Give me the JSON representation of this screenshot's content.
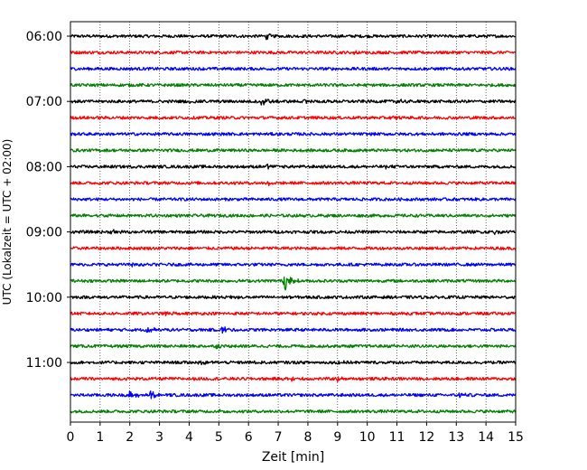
{
  "chart_data": {
    "type": "line",
    "title": "",
    "xlabel": "Zeit  [min]",
    "ylabel": "UTC (Lokalzeit = UTC + 02:00)",
    "xlim": [
      0,
      15
    ],
    "x_ticks": [
      0,
      1,
      2,
      3,
      4,
      5,
      6,
      7,
      8,
      9,
      10,
      11,
      12,
      13,
      14,
      15
    ],
    "x_tick_labels": [
      "0",
      "1",
      "2",
      "3",
      "4",
      "5",
      "6",
      "7",
      "8",
      "9",
      "10",
      "11",
      "12",
      "13",
      "14",
      "15"
    ],
    "y_tick_labels": [
      "06:00",
      "07:00",
      "08:00",
      "09:00",
      "10:00",
      "11:00"
    ],
    "grid": "vertical dotted lines at each minute",
    "color_cycle": [
      "#000000",
      "#ff0000",
      "#0000ff",
      "#008000"
    ],
    "series": [
      {
        "start": "06:00",
        "color": "#000000",
        "events": [
          {
            "t": 6.6,
            "amp": 0.35
          }
        ]
      },
      {
        "start": "06:15",
        "color": "#ff0000",
        "events": [
          {
            "t": 9.5,
            "amp": 0.2
          }
        ]
      },
      {
        "start": "06:30",
        "color": "#0000ff",
        "events": []
      },
      {
        "start": "06:45",
        "color": "#008000",
        "events": []
      },
      {
        "start": "07:00",
        "color": "#000000",
        "events": [
          {
            "t": 6.4,
            "amp": 0.9
          },
          {
            "t": 4.0,
            "amp": 0.25
          },
          {
            "t": 11.0,
            "amp": 0.3
          },
          {
            "t": 7.9,
            "amp": 0.2
          }
        ]
      },
      {
        "start": "07:15",
        "color": "#ff0000",
        "events": [
          {
            "t": 10.9,
            "amp": 0.2
          }
        ]
      },
      {
        "start": "07:30",
        "color": "#0000ff",
        "events": []
      },
      {
        "start": "07:45",
        "color": "#008000",
        "events": []
      },
      {
        "start": "08:00",
        "color": "#000000",
        "events": [
          {
            "t": 6.6,
            "amp": 0.25
          },
          {
            "t": 10.6,
            "amp": 0.2
          }
        ]
      },
      {
        "start": "08:15",
        "color": "#ff0000",
        "events": [
          {
            "t": 6.6,
            "amp": 0.25
          }
        ]
      },
      {
        "start": "08:30",
        "color": "#0000ff",
        "events": []
      },
      {
        "start": "08:45",
        "color": "#008000",
        "events": [
          {
            "t": 0.5,
            "amp": 0.2
          }
        ]
      },
      {
        "start": "09:00",
        "color": "#000000",
        "events": [
          {
            "t": 1.4,
            "amp": 0.25
          },
          {
            "t": 14.2,
            "amp": 0.3
          }
        ]
      },
      {
        "start": "09:15",
        "color": "#ff0000",
        "events": []
      },
      {
        "start": "09:30",
        "color": "#0000ff",
        "events": [
          {
            "t": 2.1,
            "amp": 0.2
          }
        ]
      },
      {
        "start": "09:45",
        "color": "#008000",
        "events": [
          {
            "t": 7.2,
            "amp": 1.2
          }
        ]
      },
      {
        "start": "10:00",
        "color": "#000000",
        "events": [
          {
            "t": 5.4,
            "amp": 0.2
          }
        ]
      },
      {
        "start": "10:15",
        "color": "#ff0000",
        "events": [
          {
            "t": 3.2,
            "amp": 0.3
          }
        ]
      },
      {
        "start": "10:30",
        "color": "#0000ff",
        "events": [
          {
            "t": 2.6,
            "amp": 0.45
          },
          {
            "t": 5.1,
            "amp": 0.4
          }
        ]
      },
      {
        "start": "10:45",
        "color": "#008000",
        "events": [
          {
            "t": 4.9,
            "amp": 0.2
          },
          {
            "t": 10.9,
            "amp": 0.2
          }
        ]
      },
      {
        "start": "11:00",
        "color": "#000000",
        "events": [
          {
            "t": 4.3,
            "amp": 0.35
          },
          {
            "t": 6.1,
            "amp": 0.2
          },
          {
            "t": 9.0,
            "amp": 0.2
          }
        ]
      },
      {
        "start": "11:15",
        "color": "#ff0000",
        "events": [
          {
            "t": 7.4,
            "amp": 0.35
          },
          {
            "t": 9.0,
            "amp": 0.25
          }
        ]
      },
      {
        "start": "11:30",
        "color": "#0000ff",
        "events": [
          {
            "t": 2.0,
            "amp": 0.55
          },
          {
            "t": 2.7,
            "amp": 0.6
          },
          {
            "t": 13.1,
            "amp": 0.3
          }
        ]
      },
      {
        "start": "11:45",
        "color": "#008000",
        "events": [
          {
            "t": 5.0,
            "amp": 0.2
          }
        ]
      }
    ]
  }
}
